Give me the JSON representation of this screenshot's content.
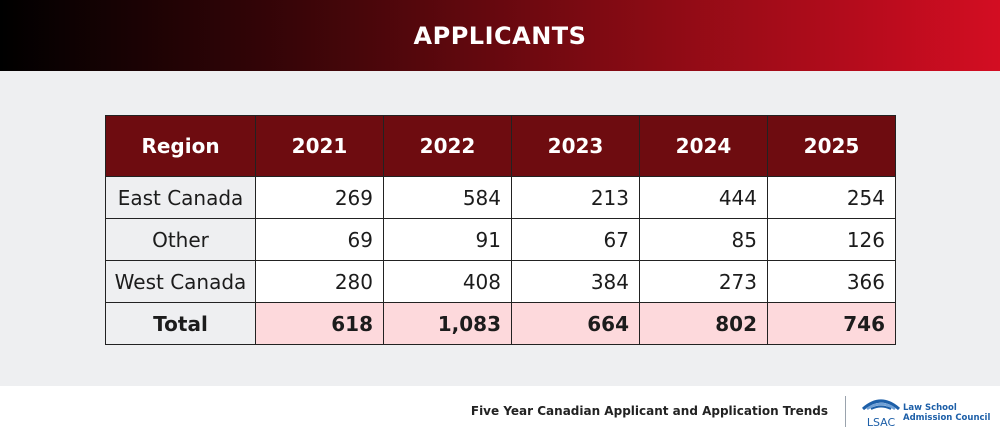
{
  "header": {
    "title": "APPLICANTS"
  },
  "chart_data": {
    "type": "table",
    "columns": [
      "Region",
      "2021",
      "2022",
      "2023",
      "2024",
      "2025"
    ],
    "rows": [
      {
        "region": "East Canada",
        "values": [
          "269",
          "584",
          "213",
          "444",
          "254"
        ]
      },
      {
        "region": "Other",
        "values": [
          "69",
          "91",
          "67",
          "85",
          "126"
        ]
      },
      {
        "region": "West Canada",
        "values": [
          "280",
          "408",
          "384",
          "273",
          "366"
        ]
      }
    ],
    "total": {
      "region": "Total",
      "values": [
        "618",
        "1,083",
        "664",
        "802",
        "746"
      ]
    }
  },
  "footer": {
    "caption": "Five Year Canadian Applicant and Application Trends",
    "logo_text": "LSAC",
    "org_name_line1": "Law School",
    "org_name_line2": "Admission Council"
  },
  "colors": {
    "header_dark": "#000000",
    "header_red": "#d30d22",
    "table_header": "#6e0c10",
    "total_highlight": "#fdd9dc",
    "logo_blue": "#1d5fa8"
  }
}
